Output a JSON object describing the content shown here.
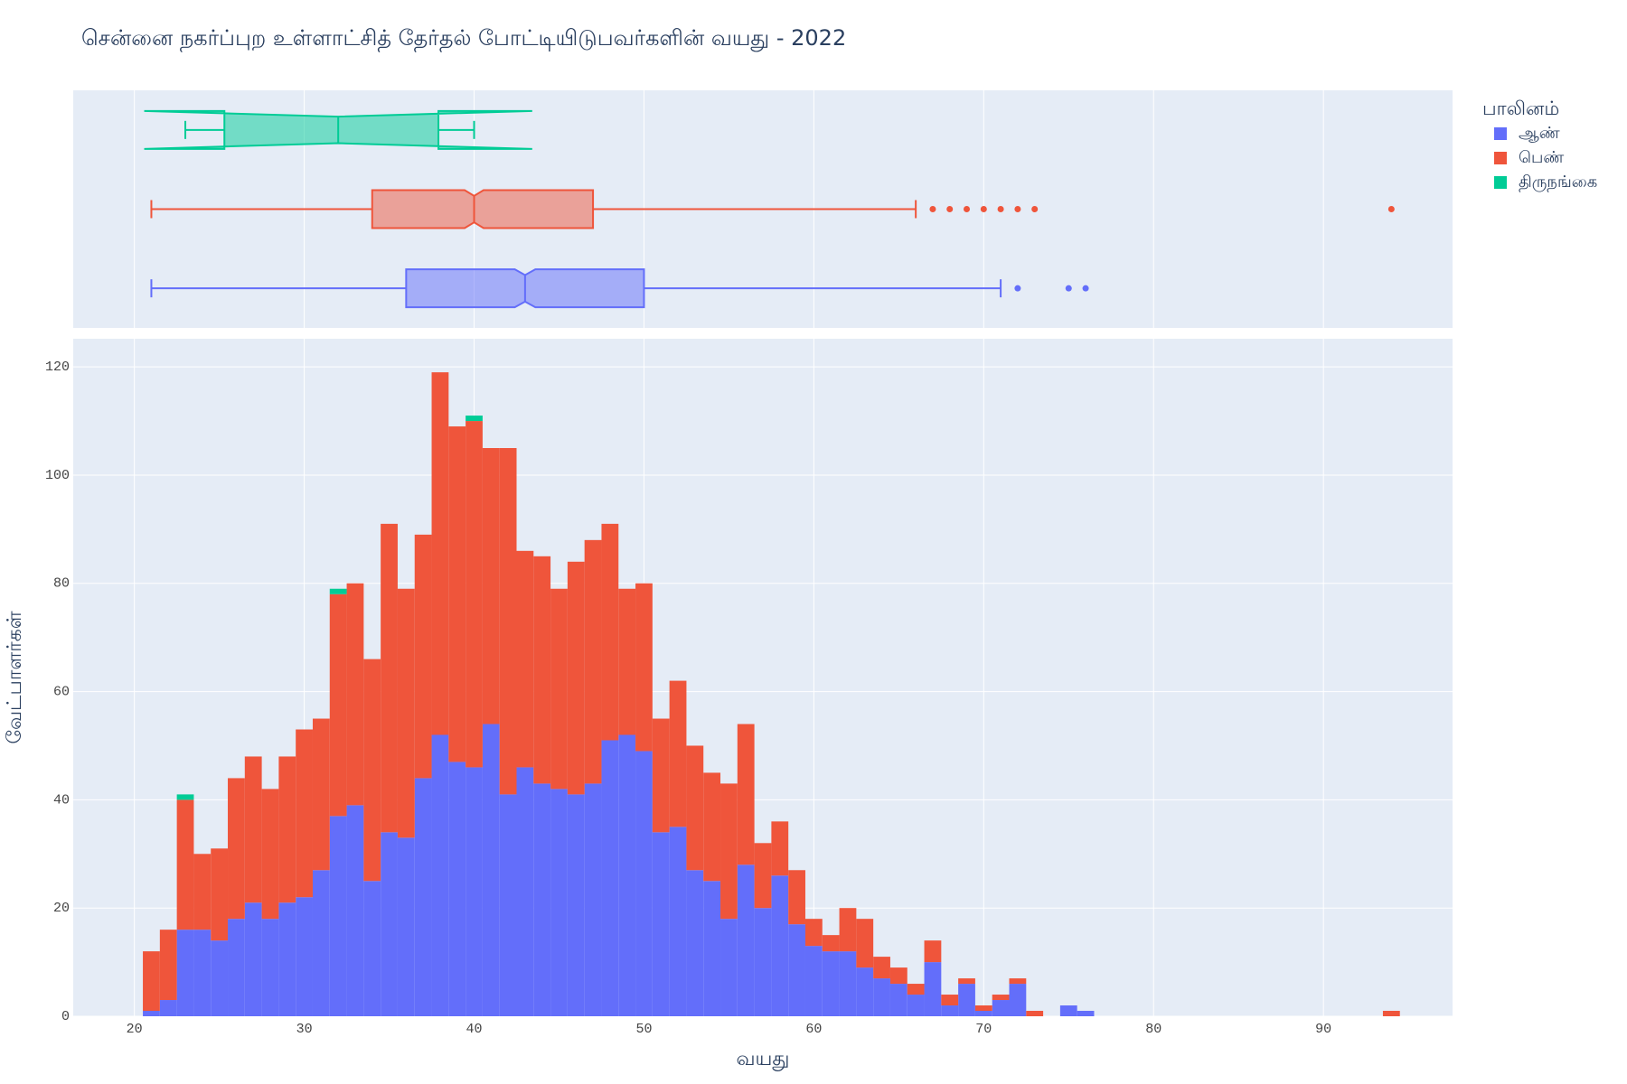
{
  "chart_data": {
    "type": "histogram",
    "title": "சென்னை நகர்ப்புற உள்ளாட்சித் தேர்தல் போட்டியிடுபவர்களின் வயது - 2022",
    "x_label": "வயது",
    "y_label": "வேட்பாளர்கள்",
    "legend_title": "பாலினம்",
    "bins": [
      20.5,
      21.5,
      22.5,
      23.5,
      24.5,
      25.5,
      26.5,
      27.5,
      28.5,
      29.5,
      30.5,
      31.5,
      32.5,
      33.5,
      34.5,
      35.5,
      36.5,
      37.5,
      38.5,
      39.5,
      40.5,
      41.5,
      42.5,
      43.5,
      44.5,
      45.5,
      46.5,
      47.5,
      48.5,
      49.5,
      50.5,
      51.5,
      52.5,
      53.5,
      54.5,
      55.5,
      56.5,
      57.5,
      58.5,
      59.5,
      60.5,
      61.5,
      62.5,
      63.5,
      64.5,
      65.5,
      66.5,
      67.5,
      68.5,
      69.5,
      70.5,
      71.5,
      72.5,
      73.5,
      74.5,
      75.5,
      76.5,
      77.5,
      78.5,
      79.5,
      80.5,
      81.5,
      82.5,
      83.5,
      84.5,
      85.5,
      86.5,
      87.5,
      88.5,
      89.5,
      90.5,
      91.5,
      92.5,
      93.5,
      94.5
    ],
    "series": [
      {
        "name": "ஆண்",
        "color": "#636efa",
        "values": [
          1,
          3,
          16,
          16,
          14,
          18,
          21,
          18,
          21,
          22,
          27,
          37,
          39,
          25,
          34,
          33,
          44,
          52,
          47,
          46,
          54,
          41,
          46,
          43,
          42,
          41,
          43,
          51,
          52,
          49,
          34,
          35,
          27,
          25,
          18,
          28,
          20,
          26,
          17,
          13,
          12,
          12,
          9,
          7,
          6,
          4,
          10,
          2,
          6,
          1,
          3,
          6,
          0,
          0,
          2,
          1,
          0,
          0,
          0,
          0,
          0,
          0,
          0,
          0,
          0,
          0,
          0,
          0,
          0,
          0,
          0,
          0,
          0,
          0
        ],
        "box": {
          "min": 21,
          "q1": 36,
          "median": 43,
          "q3": 50,
          "max": 71,
          "outliers": [
            72,
            75,
            76
          ]
        }
      },
      {
        "name": "பெண்",
        "color": "#EF553B",
        "values": [
          11,
          13,
          24,
          14,
          17,
          26,
          27,
          24,
          27,
          31,
          28,
          41,
          41,
          41,
          57,
          46,
          45,
          67,
          62,
          64,
          51,
          64,
          40,
          42,
          37,
          43,
          45,
          40,
          27,
          31,
          21,
          27,
          23,
          20,
          25,
          26,
          12,
          10,
          10,
          5,
          3,
          8,
          9,
          4,
          3,
          2,
          4,
          2,
          1,
          1,
          1,
          1,
          1,
          0,
          0,
          0,
          0,
          0,
          0,
          0,
          0,
          0,
          0,
          0,
          0,
          0,
          0,
          0,
          0,
          0,
          0,
          0,
          0,
          1
        ],
        "box": {
          "min": 21,
          "q1": 34,
          "median": 40,
          "q3": 47,
          "max": 66,
          "outliers": [
            67,
            68,
            69,
            70,
            71,
            72,
            73,
            94
          ]
        }
      },
      {
        "name": "திருநங்கை",
        "color": "#00cc96",
        "values": [
          0,
          0,
          1,
          0,
          0,
          0,
          0,
          0,
          0,
          0,
          0,
          1,
          0,
          0,
          0,
          0,
          0,
          0,
          0,
          1,
          0,
          0,
          0,
          0,
          0,
          0,
          0,
          0,
          0,
          0,
          0,
          0,
          0,
          0,
          0,
          0,
          0,
          0,
          0,
          0,
          0,
          0,
          0,
          0,
          0,
          0,
          0,
          0,
          0,
          0,
          0,
          0,
          0,
          0,
          0,
          0,
          0,
          0,
          0,
          0,
          0,
          0,
          0,
          0,
          0,
          0,
          0,
          0,
          0,
          0,
          0,
          0,
          0,
          0
        ],
        "box": {
          "min": 23,
          "q1": 25.3,
          "median": 32,
          "q3": 37.9,
          "max": 40,
          "outliers": []
        }
      }
    ],
    "xlim": [
      16.4,
      97.6
    ],
    "xticks": [
      20,
      30,
      40,
      50,
      60,
      70,
      80,
      90
    ],
    "ylim": [
      0,
      125.2
    ],
    "yticks": [
      0,
      20,
      40,
      60,
      80,
      100,
      120
    ],
    "grid": true,
    "legend": "right"
  }
}
